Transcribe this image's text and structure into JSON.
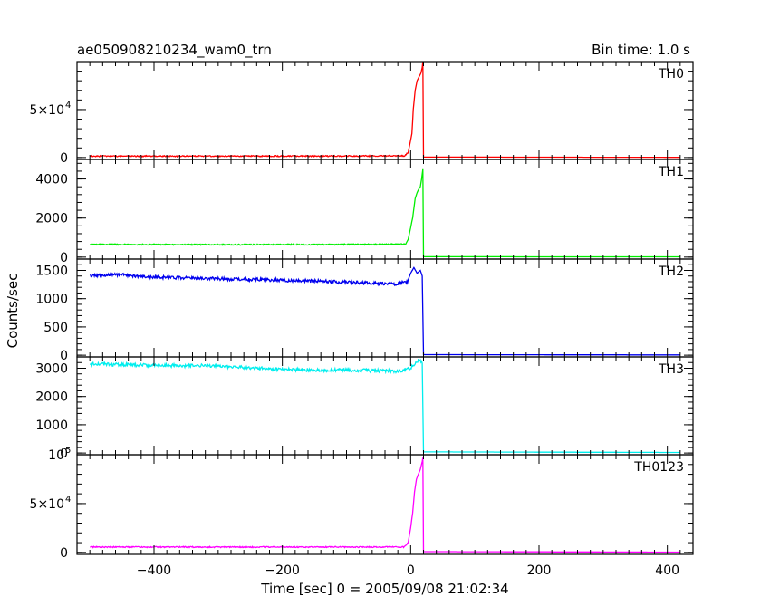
{
  "chart_data": {
    "type": "line",
    "title": "ae050908210234_wam0_trn",
    "subtitle": "Bin time: 1.0 s",
    "xlabel": "Time [sec] 0 = 2005/09/08 21:02:34",
    "ylabel": "Counts/sec",
    "xlim": [
      -520,
      440
    ],
    "xticks": [
      -400,
      -200,
      0,
      200,
      400
    ],
    "xticks_minor": 20,
    "grid": false,
    "panels": [
      {
        "name": "TH0",
        "color": "#ff0000",
        "ylim": [
          -2000,
          100000
        ],
        "yticks": [
          {
            "value": 0,
            "label": "0"
          },
          {
            "value": 50000,
            "label": "5×10",
            "exp": "4"
          }
        ],
        "series": [
          {
            "x": -500,
            "y": 1400
          },
          {
            "x": -100,
            "y": 1500
          },
          {
            "x": -10,
            "y": 1800
          },
          {
            "x": -4,
            "y": 5000
          },
          {
            "x": 0,
            "y": 18000
          },
          {
            "x": 2,
            "y": 25000
          },
          {
            "x": 4,
            "y": 50000
          },
          {
            "x": 7,
            "y": 70000
          },
          {
            "x": 10,
            "y": 80000
          },
          {
            "x": 13,
            "y": 84000
          },
          {
            "x": 16,
            "y": 88000
          },
          {
            "x": 18,
            "y": 94000
          },
          {
            "x": 19,
            "y": 100000
          },
          {
            "x": 20,
            "y": 500
          },
          {
            "x": 420,
            "y": 200
          }
        ]
      },
      {
        "name": "TH1",
        "color": "#00ee00",
        "ylim": [
          -100,
          5000
        ],
        "yticks": [
          {
            "value": 0,
            "label": "0"
          },
          {
            "value": 2000,
            "label": "2000"
          },
          {
            "value": 4000,
            "label": "4000"
          }
        ],
        "series": [
          {
            "x": -500,
            "y": 650
          },
          {
            "x": -300,
            "y": 640
          },
          {
            "x": -100,
            "y": 650
          },
          {
            "x": -8,
            "y": 660
          },
          {
            "x": -4,
            "y": 900
          },
          {
            "x": 0,
            "y": 1500
          },
          {
            "x": 3,
            "y": 2000
          },
          {
            "x": 7,
            "y": 3000
          },
          {
            "x": 10,
            "y": 3300
          },
          {
            "x": 13,
            "y": 3500
          },
          {
            "x": 15,
            "y": 3600
          },
          {
            "x": 17,
            "y": 4000
          },
          {
            "x": 19,
            "y": 4500
          },
          {
            "x": 20,
            "y": 20
          },
          {
            "x": 420,
            "y": 15
          }
        ]
      },
      {
        "name": "TH2",
        "color": "#0000ee",
        "ylim": [
          -30,
          1700
        ],
        "yticks": [
          {
            "value": 0,
            "label": "0"
          },
          {
            "value": 500,
            "label": "500"
          },
          {
            "value": 1000,
            "label": "1000"
          },
          {
            "value": 1500,
            "label": "1500"
          }
        ],
        "series": [
          {
            "x": -500,
            "y": 1410
          },
          {
            "x": -450,
            "y": 1420
          },
          {
            "x": -400,
            "y": 1380
          },
          {
            "x": -300,
            "y": 1350
          },
          {
            "x": -200,
            "y": 1330
          },
          {
            "x": -100,
            "y": 1290
          },
          {
            "x": -20,
            "y": 1260
          },
          {
            "x": -5,
            "y": 1300
          },
          {
            "x": 0,
            "y": 1450
          },
          {
            "x": 5,
            "y": 1550
          },
          {
            "x": 10,
            "y": 1450
          },
          {
            "x": 15,
            "y": 1500
          },
          {
            "x": 18,
            "y": 1400
          },
          {
            "x": 20,
            "y": 10
          },
          {
            "x": 420,
            "y": 5
          }
        ]
      },
      {
        "name": "TH3",
        "color": "#00eeee",
        "ylim": [
          -60,
          3400
        ],
        "yticks": [
          {
            "value": 0,
            "label": "0"
          },
          {
            "value": 1000,
            "label": "1000"
          },
          {
            "value": 2000,
            "label": "2000"
          },
          {
            "value": 3000,
            "label": "3000"
          }
        ],
        "series": [
          {
            "x": -500,
            "y": 3150
          },
          {
            "x": -400,
            "y": 3100
          },
          {
            "x": -300,
            "y": 3080
          },
          {
            "x": -200,
            "y": 2950
          },
          {
            "x": -100,
            "y": 2930
          },
          {
            "x": -20,
            "y": 2900
          },
          {
            "x": -5,
            "y": 2950
          },
          {
            "x": 5,
            "y": 3100
          },
          {
            "x": 12,
            "y": 3300
          },
          {
            "x": 18,
            "y": 3200
          },
          {
            "x": 20,
            "y": 40
          },
          {
            "x": 420,
            "y": 20
          }
        ]
      },
      {
        "name": "TH0123",
        "color": "#ff00ff",
        "ylim": [
          -2000,
          100000
        ],
        "yticks": [
          {
            "value": 0,
            "label": "0"
          },
          {
            "value": 50000,
            "label": "5×10",
            "exp": "4"
          },
          {
            "value": 100000,
            "label": "10",
            "exp": "5"
          }
        ],
        "series": [
          {
            "x": -500,
            "y": 5500
          },
          {
            "x": -100,
            "y": 5500
          },
          {
            "x": -10,
            "y": 5600
          },
          {
            "x": -4,
            "y": 10000
          },
          {
            "x": 0,
            "y": 25000
          },
          {
            "x": 3,
            "y": 40000
          },
          {
            "x": 6,
            "y": 62000
          },
          {
            "x": 9,
            "y": 75000
          },
          {
            "x": 12,
            "y": 80000
          },
          {
            "x": 15,
            "y": 85000
          },
          {
            "x": 18,
            "y": 93000
          },
          {
            "x": 19,
            "y": 97000
          },
          {
            "x": 20,
            "y": 800
          },
          {
            "x": 420,
            "y": 300
          }
        ]
      }
    ]
  }
}
